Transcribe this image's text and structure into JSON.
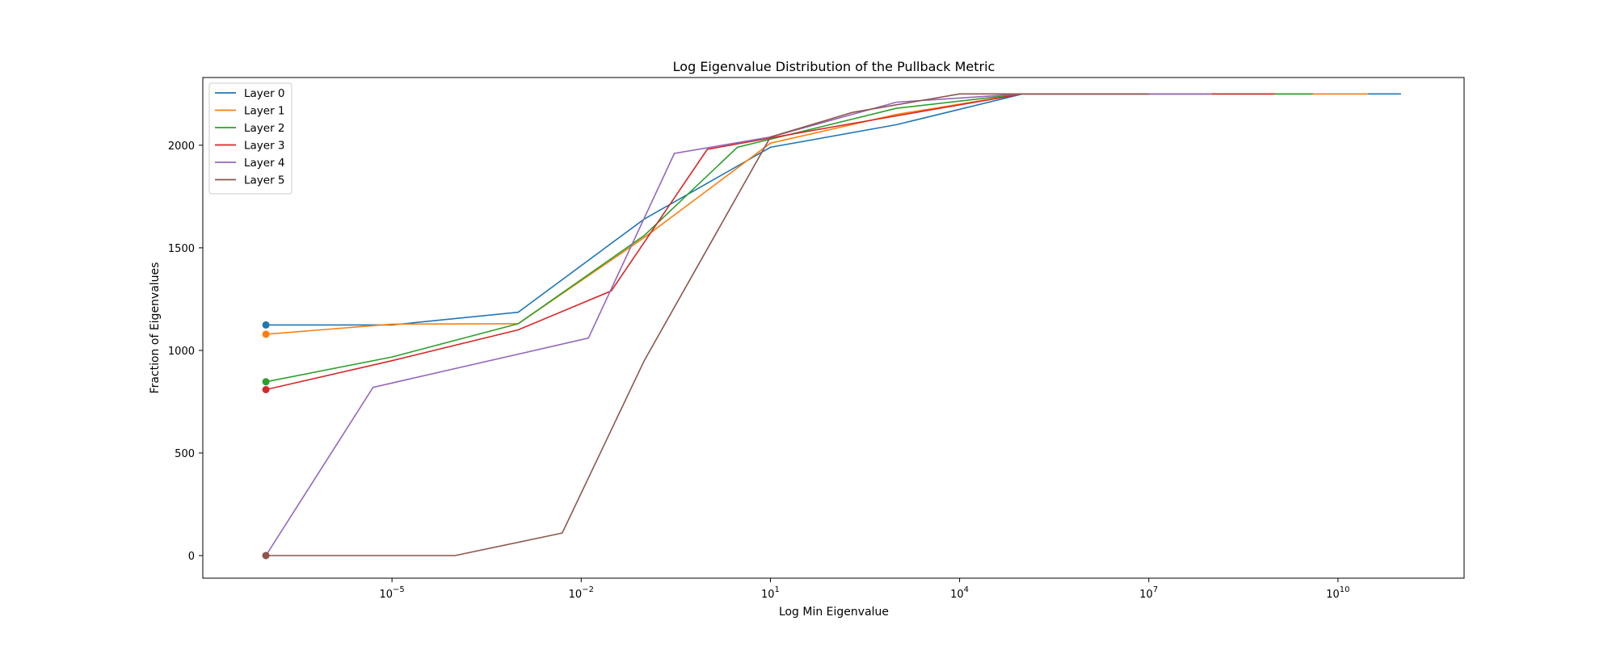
{
  "chart_data": {
    "type": "line",
    "title": "Log Eigenvalue Distribution of the Pullback Metric",
    "xlabel": "Log Min Eigenvalue",
    "ylabel": "Fraction of Eigenvalues",
    "x_scale": "log",
    "xlim": [
      1e-08,
      1000000000000.0
    ],
    "ylim": [
      -110,
      2330
    ],
    "x_ticks": [
      {
        "value": 1e-05,
        "base": "10",
        "exp": "−5"
      },
      {
        "value": 0.01,
        "base": "10",
        "exp": "−2"
      },
      {
        "value": 10,
        "base": "10",
        "exp": "1"
      },
      {
        "value": 10000.0,
        "base": "10",
        "exp": "4"
      },
      {
        "value": 10000000.0,
        "base": "10",
        "exp": "7"
      },
      {
        "value": 10000000000.0,
        "base": "10",
        "exp": "10"
      }
    ],
    "y_ticks": [
      "0",
      "500",
      "1000",
      "1500",
      "2000"
    ],
    "grid": false,
    "legend_position": "top-left",
    "series": [
      {
        "name": "Layer 0",
        "color": "#1f77b4",
        "x": [
          1e-07,
          1e-05,
          0.001,
          0.1,
          10,
          1000,
          100000.0,
          10000000.0,
          1000000000.0,
          100000000000.0
        ],
        "y": [
          1124,
          1124,
          1186,
          1640,
          1990,
          2100,
          2250,
          2250,
          2250,
          2250
        ],
        "marker_first": true
      },
      {
        "name": "Layer 1",
        "color": "#ff7f0e",
        "x": [
          1e-07,
          1e-05,
          0.001,
          0.1,
          10,
          1000,
          100000.0,
          10000000.0,
          1000000000.0,
          30000000000.0
        ],
        "y": [
          1079,
          1128,
          1130,
          1550,
          2010,
          2150,
          2250,
          2250,
          2250,
          2250
        ],
        "marker_first": true
      },
      {
        "name": "Layer 2",
        "color": "#2ca02c",
        "x": [
          1e-07,
          1e-05,
          0.001,
          0.1,
          3,
          1000,
          100000.0,
          10000000.0,
          4000000000.0
        ],
        "y": [
          847,
          968,
          1130,
          1560,
          1990,
          2180,
          2250,
          2250,
          2250
        ],
        "marker_first": true
      },
      {
        "name": "Layer 3",
        "color": "#d62728",
        "x": [
          1e-07,
          1e-05,
          0.001,
          0.03,
          1,
          100,
          100000.0,
          10000000.0,
          200000000.0,
          1000000000.0
        ],
        "y": [
          809,
          950,
          1100,
          1290,
          1980,
          2090,
          2250,
          2250,
          2250,
          2250
        ],
        "marker_first": true
      },
      {
        "name": "Layer 4",
        "color": "#9467bd",
        "x": [
          1e-07,
          5e-06,
          0.013,
          0.3,
          10,
          1000,
          100000.0,
          10000000.0,
          100000000.0
        ],
        "y": [
          0,
          820,
          1060,
          1960,
          2040,
          2210,
          2250,
          2250,
          2250
        ],
        "marker_first": true
      },
      {
        "name": "Layer 5",
        "color": "#8c564b",
        "x": [
          1e-07,
          1e-05,
          0.0001,
          0.005,
          0.1,
          10,
          200,
          10000.0,
          1000000.0,
          10000000.0
        ],
        "y": [
          0,
          0,
          0,
          110,
          950,
          2040,
          2160,
          2250,
          2250,
          2250
        ],
        "marker_first": true
      }
    ]
  }
}
